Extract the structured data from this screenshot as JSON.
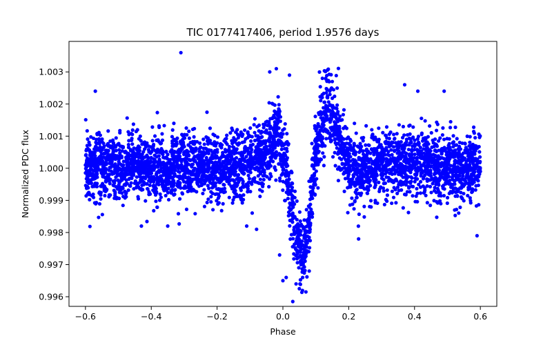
{
  "chart_data": {
    "type": "scatter",
    "title": "TIC 0177417406, period 1.9576 days",
    "xlabel": "Phase",
    "ylabel": "Normalized PDC flux",
    "xlim": [
      -0.65,
      0.65
    ],
    "ylim": [
      0.9957,
      1.00395
    ],
    "xticks": [
      -0.6,
      -0.4,
      -0.2,
      0.0,
      0.2,
      0.4,
      0.6
    ],
    "xtick_labels": [
      "−0.6",
      "−0.4",
      "−0.2",
      "0.0",
      "0.2",
      "0.4",
      "0.6"
    ],
    "yticks": [
      0.996,
      0.997,
      0.998,
      0.999,
      1.0,
      1.001,
      1.002,
      1.003
    ],
    "ytick_labels": [
      "0.996",
      "0.997",
      "0.998",
      "0.999",
      "1.000",
      "1.001",
      "1.002",
      "1.003"
    ],
    "grid": false,
    "marker_color": "#0000ff",
    "series": [
      {
        "x": [
          -0.6,
          -0.58,
          -0.56,
          -0.54,
          -0.52,
          -0.5,
          -0.48,
          -0.46,
          -0.44,
          -0.42,
          -0.4,
          -0.38,
          -0.36,
          -0.34,
          -0.32,
          -0.3,
          -0.28,
          -0.26,
          -0.24,
          -0.22,
          -0.2,
          -0.18,
          -0.16,
          -0.14,
          -0.12,
          -0.1,
          -0.08,
          -0.06,
          -0.04,
          -0.03,
          -0.02,
          -0.01,
          0.0,
          0.01,
          0.02,
          0.03,
          0.04,
          0.05,
          0.06,
          0.07,
          0.08,
          0.09,
          0.1,
          0.11,
          0.12,
          0.13,
          0.14,
          0.15,
          0.16,
          0.17,
          0.18,
          0.19,
          0.2,
          0.22,
          0.24,
          0.26,
          0.28,
          0.3,
          0.32,
          0.34,
          0.36,
          0.38,
          0.4,
          0.42,
          0.44,
          0.46,
          0.48,
          0.5,
          0.52,
          0.54,
          0.56,
          0.58,
          0.6,
          -0.31,
          -0.04,
          -0.02,
          0.02,
          0.03,
          0.07,
          0.12,
          0.13,
          0.15,
          0.37,
          0.41,
          0.49,
          -0.57,
          -0.43,
          -0.35,
          -0.11,
          -0.08,
          -0.01,
          0.0,
          0.01,
          0.04,
          0.05,
          0.06,
          0.08,
          0.23,
          0.59
        ],
        "y": [
          1.0001,
          0.99995,
          1.0002,
          0.9999,
          1.0001,
          1.0,
          0.99985,
          1.0002,
          1.0001,
          0.99995,
          1.0,
          1.0001,
          0.9999,
          1.0,
          1.00005,
          0.99995,
          1.0001,
          0.9999,
          1.00005,
          1.0,
          0.9999,
          0.99995,
          1.0,
          1.00005,
          0.99995,
          1.0001,
          1.0003,
          1.0004,
          1.0007,
          1.0009,
          1.0011,
          1.001,
          1.0004,
          0.9999,
          0.9993,
          0.9986,
          0.998,
          0.9974,
          0.9972,
          0.9976,
          0.9984,
          0.9993,
          1.0004,
          1.0011,
          1.0015,
          1.0017,
          1.0018,
          1.0017,
          1.0014,
          1.0011,
          1.0008,
          1.0004,
          1.0001,
          0.9999,
          0.99995,
          1.0,
          1.0001,
          1.00015,
          1.0001,
          1.0002,
          1.0001,
          1.0002,
          1.0002,
          1.0001,
          1.0003,
          1.0001,
          1.00005,
          1.0,
          0.9999,
          0.99995,
          1.0001,
          1.0001,
          0.9999,
          1.0036,
          1.003,
          1.0031,
          1.0029,
          0.99585,
          0.99615,
          1.0028,
          1.0028,
          1.0027,
          1.0026,
          1.0024,
          1.0024,
          1.0024,
          0.9982,
          0.9982,
          0.9982,
          0.9981,
          0.9973,
          0.9965,
          0.9966,
          0.9964,
          0.99625,
          0.9966,
          0.9968,
          0.9978,
          0.9979
        ]
      }
    ]
  }
}
